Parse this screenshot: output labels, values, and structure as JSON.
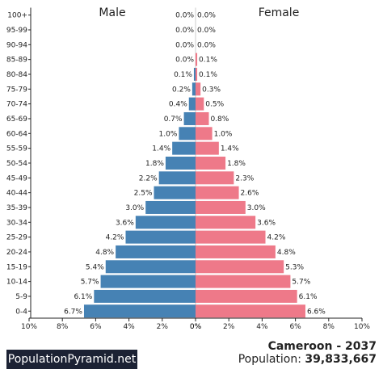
{
  "chart_data": {
    "type": "bar",
    "orientation": "horizontal",
    "layout": "population-pyramid",
    "categories": [
      "0-4",
      "5-9",
      "10-14",
      "15-19",
      "20-24",
      "25-29",
      "30-34",
      "35-39",
      "40-44",
      "45-49",
      "50-54",
      "55-59",
      "60-64",
      "65-69",
      "70-74",
      "75-79",
      "80-84",
      "85-89",
      "90-94",
      "95-99",
      "100+"
    ],
    "series": [
      {
        "name": "Male",
        "color": "#4682b4",
        "values": [
          6.7,
          6.1,
          5.7,
          5.4,
          4.8,
          4.2,
          3.6,
          3.0,
          2.5,
          2.2,
          1.8,
          1.4,
          1.0,
          0.7,
          0.4,
          0.2,
          0.1,
          0.0,
          0.0,
          0.0,
          0.0
        ],
        "labels": [
          "6.7%",
          "6.1%",
          "5.7%",
          "5.4%",
          "4.8%",
          "4.2%",
          "3.6%",
          "3.0%",
          "2.5%",
          "2.2%",
          "1.8%",
          "1.4%",
          "1.0%",
          "0.7%",
          "0.4%",
          "0.2%",
          "0.1%",
          "0.0%",
          "0.0%",
          "0.0%",
          "0.0%"
        ]
      },
      {
        "name": "Female",
        "color": "#ee7989",
        "values": [
          6.6,
          6.1,
          5.7,
          5.3,
          4.8,
          4.2,
          3.6,
          3.0,
          2.6,
          2.3,
          1.8,
          1.4,
          1.0,
          0.8,
          0.5,
          0.3,
          0.1,
          0.1,
          0.0,
          0.0,
          0.0
        ],
        "labels": [
          "6.6%",
          "6.1%",
          "5.7%",
          "5.3%",
          "4.8%",
          "4.2%",
          "3.6%",
          "3.0%",
          "2.6%",
          "2.3%",
          "1.8%",
          "1.4%",
          "1.0%",
          "0.8%",
          "0.5%",
          "0.3%",
          "0.1%",
          "0.1%",
          "0.0%",
          "0.0%",
          "0.0%"
        ]
      }
    ],
    "xlim": [
      0,
      10
    ],
    "xticks": [
      10,
      8,
      6,
      4,
      2,
      0
    ],
    "xtick_labels_left": [
      "10%",
      "8%",
      "6%",
      "4%",
      "2%",
      "0%"
    ],
    "xtick_labels_right": [
      "0%",
      "2%",
      "4%",
      "6%",
      "8%",
      "10%"
    ],
    "grid": false
  },
  "footer": {
    "brand": "PopulationPyramid.net",
    "place": "Cameroon - 2037",
    "population_label": "Population:",
    "population_value": "39,833,667"
  }
}
